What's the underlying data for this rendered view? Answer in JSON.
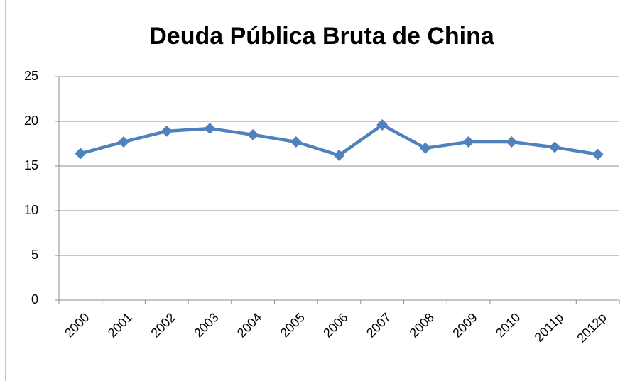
{
  "chart_data": {
    "type": "line",
    "title": "Deuda Pública Bruta de China",
    "categories": [
      "2000",
      "2001",
      "2002",
      "2003",
      "2004",
      "2005",
      "2006",
      "2007",
      "2008",
      "2009",
      "2010",
      "2011p",
      "2012p"
    ],
    "series": [
      {
        "name": "Deuda Pública Bruta de China",
        "color": "#4f81bd",
        "values": [
          16.4,
          17.7,
          18.9,
          19.2,
          18.5,
          17.7,
          16.2,
          19.6,
          17.0,
          17.7,
          17.7,
          17.1,
          16.3
        ]
      }
    ],
    "ylim": [
      0,
      25
    ],
    "yticks": [
      0,
      5,
      10,
      15,
      20,
      25
    ],
    "grid": true
  }
}
